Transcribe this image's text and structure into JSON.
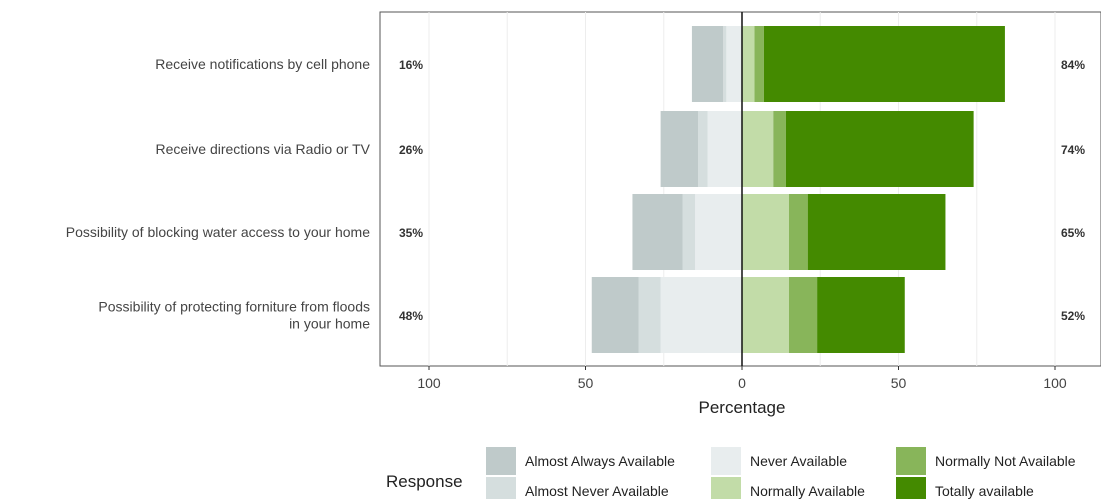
{
  "chart_data": {
    "type": "bar",
    "orientation": "horizontal",
    "stacked": "diverging",
    "categories": [
      "Receive notifications by cell phone",
      "Receive directions via Radio or TV",
      "Possibility of blocking water access to your home",
      "Possibility of protecting forniture from floods in your home"
    ],
    "category_lines": [
      [
        "Receive notifications by cell phone"
      ],
      [
        "Receive directions via Radio or TV"
      ],
      [
        "Possibility of blocking water access to your home"
      ],
      [
        "Possibility of protecting forniture from floods",
        "in your home"
      ]
    ],
    "series": [
      {
        "name": "Almost Always Available",
        "side": "negative",
        "color": "#BFCACA",
        "values": [
          10,
          12,
          16,
          15
        ]
      },
      {
        "name": "Almost Never Available",
        "side": "negative",
        "color": "#D5DEDE",
        "values": [
          1,
          3,
          4,
          7
        ]
      },
      {
        "name": "Never Available",
        "side": "negative",
        "color": "#E8EDEE",
        "values": [
          5,
          11,
          15,
          26
        ]
      },
      {
        "name": "Normally Available",
        "side": "positive",
        "color": "#C2DCA8",
        "values": [
          4,
          10,
          15,
          15
        ]
      },
      {
        "name": "Normally Not Available",
        "side": "positive",
        "color": "#88B55A",
        "values": [
          3,
          4,
          6,
          9
        ]
      },
      {
        "name": "Totally available",
        "side": "positive",
        "color": "#448A00",
        "values": [
          77,
          60,
          44,
          28
        ]
      }
    ],
    "left_totals": [
      "16%",
      "26%",
      "35%",
      "48%"
    ],
    "right_totals": [
      "84%",
      "74%",
      "65%",
      "52%"
    ],
    "xlabel": "Percentage",
    "ylabel": "",
    "xlim": [
      -115,
      115
    ],
    "xticks": [
      -100,
      -50,
      0,
      50,
      100
    ],
    "xtick_labels": [
      "100",
      "50",
      "0",
      "50",
      "100"
    ],
    "legend": {
      "title": "Response",
      "placement": "bottom",
      "order": [
        "Almost Always Available",
        "Almost Never Available",
        "Never Available",
        "Normally Available",
        "Normally Not Available",
        "Totally available"
      ]
    },
    "grid": true
  }
}
